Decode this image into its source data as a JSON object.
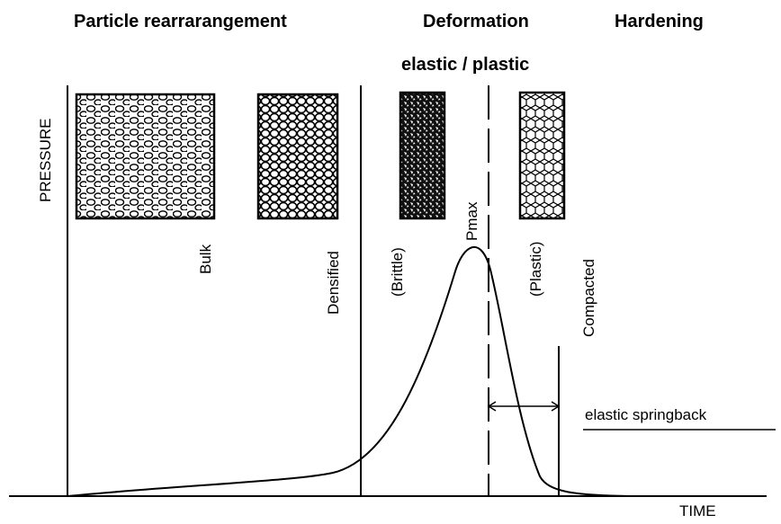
{
  "header": {
    "phases": [
      "Particle rearrarangement",
      "Deformation",
      "Hardening"
    ],
    "subtitle": "elastic / plastic"
  },
  "axes": {
    "y": "PRESSURE",
    "x": "TIME"
  },
  "labels": [
    "Bulk",
    "Densified",
    "(Brittle)",
    "Pmax",
    "(Plastic)",
    "Compacted"
  ],
  "annotation": "elastic springback"
}
